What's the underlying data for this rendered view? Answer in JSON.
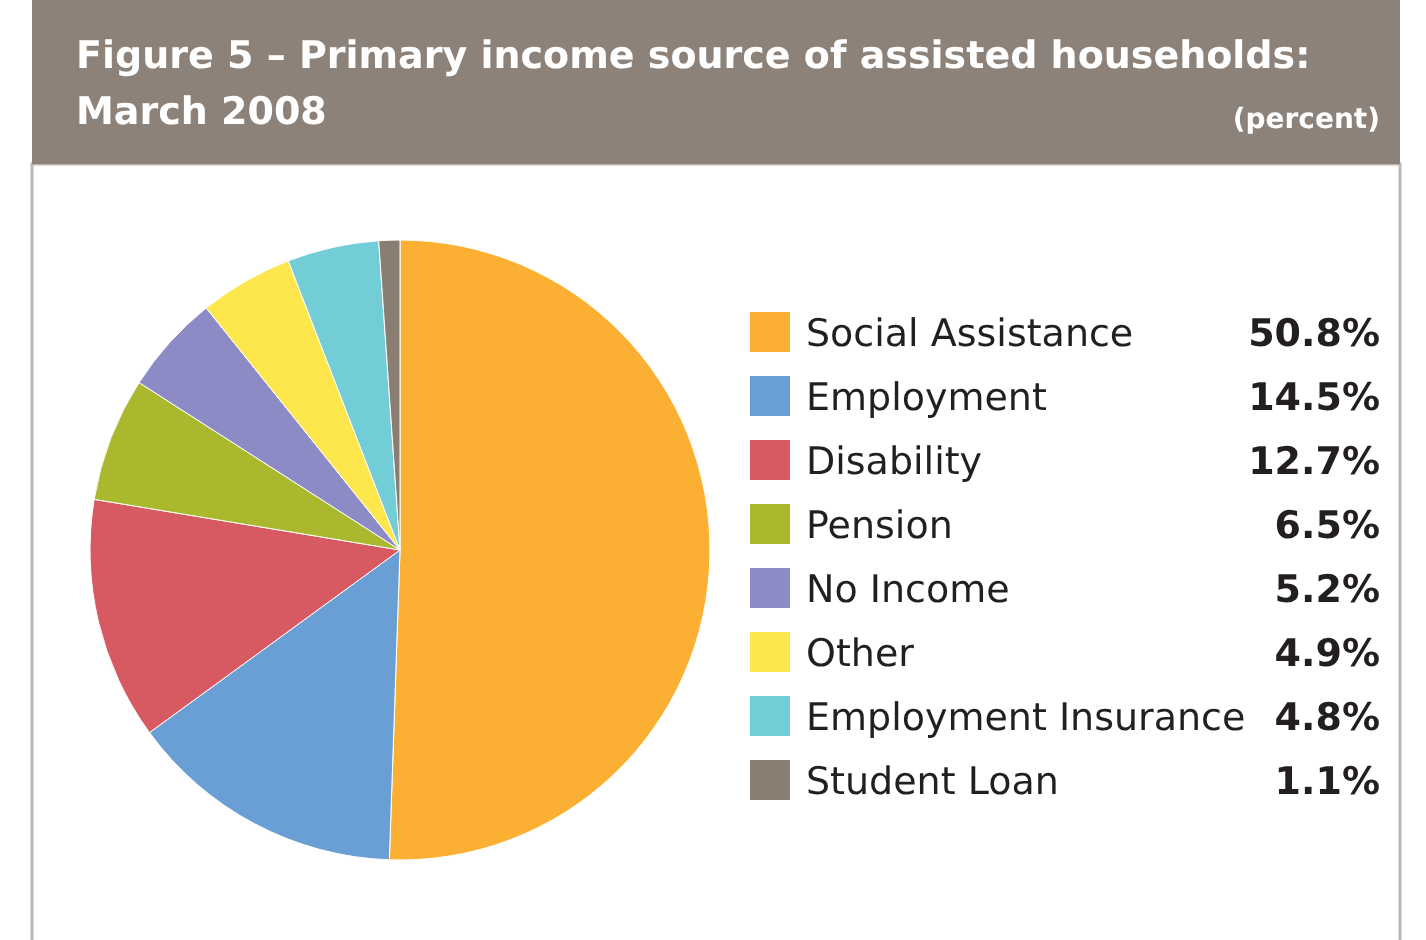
{
  "chart_data": {
    "type": "pie",
    "title": "Figure 5 – Primary income source of assisted households:\nMarch 2008",
    "subtitle": "(percent)",
    "categories": [
      "Social Assistance",
      "Employment",
      "Disability",
      "Pension",
      "No Income",
      "Other",
      "Employment Insurance",
      "Student Loan"
    ],
    "values": [
      50.8,
      14.5,
      12.7,
      6.5,
      5.2,
      4.9,
      4.8,
      1.1
    ],
    "value_labels": [
      "50.8%",
      "14.5%",
      "12.7%",
      "6.5%",
      "5.2%",
      "4.9%",
      "4.8%",
      "1.1%"
    ],
    "colors": [
      "#fbb034",
      "#6a9fd5",
      "#d75a62",
      "#a9b82c",
      "#8d8bc6",
      "#fde74c",
      "#72cdd6",
      "#8a7e72"
    ],
    "legend": "right"
  }
}
